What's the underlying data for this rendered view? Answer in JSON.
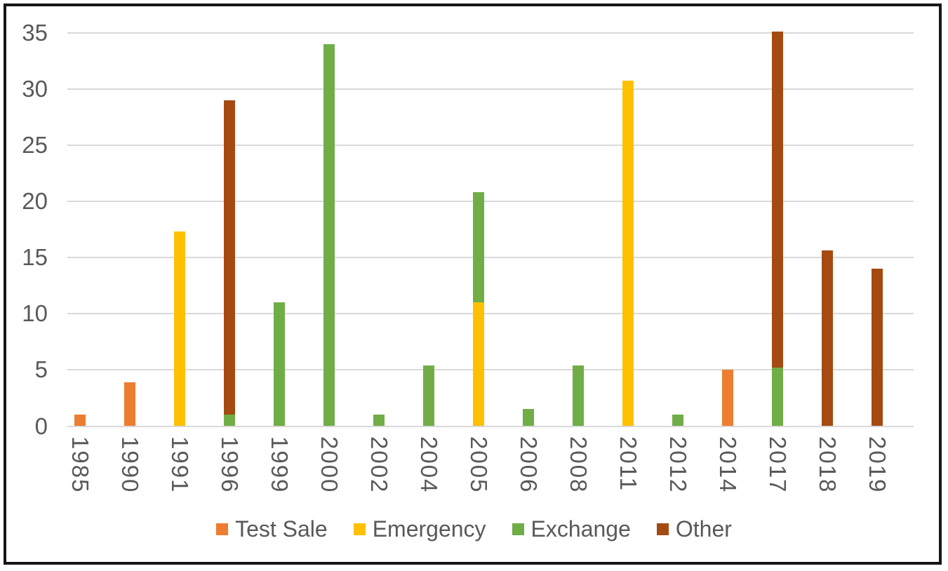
{
  "chart_data": {
    "type": "bar",
    "stacked": true,
    "title": "",
    "xlabel": "",
    "ylabel": "",
    "categories": [
      "1985",
      "1990",
      "1991",
      "1996",
      "1999",
      "2000",
      "2002",
      "2004",
      "2005",
      "2006",
      "2008",
      "2011",
      "2012",
      "2014",
      "2017",
      "2018",
      "2019"
    ],
    "series": [
      {
        "name": "Test Sale",
        "color": "#ED7D31",
        "values": [
          1,
          3.9,
          0,
          0,
          0,
          0,
          0,
          0,
          0,
          0,
          0,
          0,
          0,
          5,
          0,
          0,
          0
        ]
      },
      {
        "name": "Emergency",
        "color": "#FFC000",
        "values": [
          0,
          0,
          17.3,
          0,
          0,
          0,
          0,
          0,
          11,
          0,
          0,
          30.7,
          0,
          0,
          0,
          0,
          0
        ]
      },
      {
        "name": "Exchange",
        "color": "#70AD47",
        "values": [
          0,
          0,
          0,
          1,
          11,
          34,
          1,
          5.4,
          9.8,
          1.5,
          5.4,
          0,
          1,
          0,
          5.2,
          0,
          0
        ]
      },
      {
        "name": "Other",
        "color": "#A54A10",
        "values": [
          0,
          0,
          0,
          28,
          0,
          0,
          0,
          0,
          0,
          0,
          0,
          0,
          0,
          0,
          29.9,
          15.6,
          14
        ]
      }
    ],
    "yticks": [
      "0",
      "5",
      "10",
      "15",
      "20",
      "25",
      "30",
      "35"
    ],
    "ytick_values": [
      0,
      5,
      10,
      15,
      20,
      25,
      30,
      35
    ],
    "ylim": [
      0,
      35
    ],
    "grid": true,
    "gridline_color": "#D9D9D9",
    "axis_text_color": "#595959",
    "legend_position": "bottom",
    "legend_labels": [
      "Test Sale",
      "Emergency",
      "Exchange",
      "Other"
    ],
    "x_label_rotation_deg": 90
  }
}
